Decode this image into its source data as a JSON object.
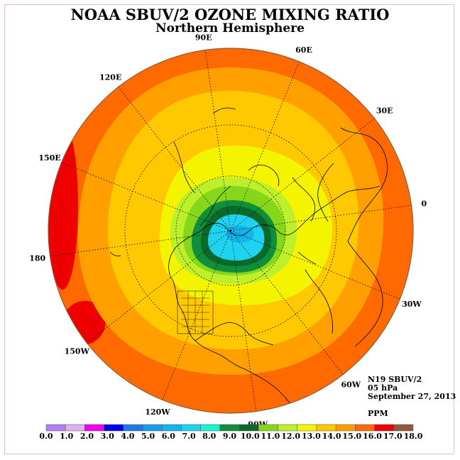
{
  "title": "NOAA SBUV/2 OZONE MIXING RATIO",
  "subtitle": "Northern Hemisphere",
  "info": {
    "satellite": "N19 SBUV/2",
    "level": "05 hPa",
    "date": "September 27, 2013",
    "units": "PPM"
  },
  "longitude_labels": [
    {
      "text": "90E",
      "lon": 90
    },
    {
      "text": "60E",
      "lon": 60
    },
    {
      "text": "30E",
      "lon": 30
    },
    {
      "text": "0",
      "lon": 0
    },
    {
      "text": "30W",
      "lon": -30
    },
    {
      "text": "60W",
      "lon": -60
    },
    {
      "text": "90W",
      "lon": -90
    },
    {
      "text": "120W",
      "lon": -120
    },
    {
      "text": "150W",
      "lon": -150
    },
    {
      "text": "180",
      "lon": 180
    },
    {
      "text": "150E",
      "lon": 150
    },
    {
      "text": "120E",
      "lon": 120
    }
  ],
  "colorbar": {
    "ticks": [
      "0.0",
      "1.0",
      "2.0",
      "3.0",
      "4.0",
      "5.0",
      "6.0",
      "7.0",
      "8.0",
      "9.0",
      "10.0",
      "11.0",
      "12.0",
      "13.0",
      "14.0",
      "15.0",
      "16.0",
      "17.0",
      "18.0"
    ],
    "colors": [
      "#b27ff2",
      "#dcb1f0",
      "#ee00ee",
      "#0000ee",
      "#1a7be8",
      "#1a9be8",
      "#13b4ec",
      "#1ed2f0",
      "#17f4cf",
      "#0f8f3c",
      "#0b6a2a",
      "#86d61a",
      "#bdf02a",
      "#f4f400",
      "#ffc800",
      "#ffa000",
      "#ff6a00",
      "#ee0000",
      "#8c5a3c"
    ]
  },
  "colors": {
    "outer_band": "#ff6a00",
    "mid_band": "#ffa000",
    "inner_band": "#ffc800",
    "yellow_band": "#f4f400",
    "green_light": "#bdf02a",
    "green_mid": "#86d61a",
    "green_dark": "#0f8f3c",
    "green_darker": "#0b6a2a",
    "cyan_center": "#1ed2f0",
    "cyan_deep": "#13b4ec",
    "red_patch": "#ee0000"
  }
}
